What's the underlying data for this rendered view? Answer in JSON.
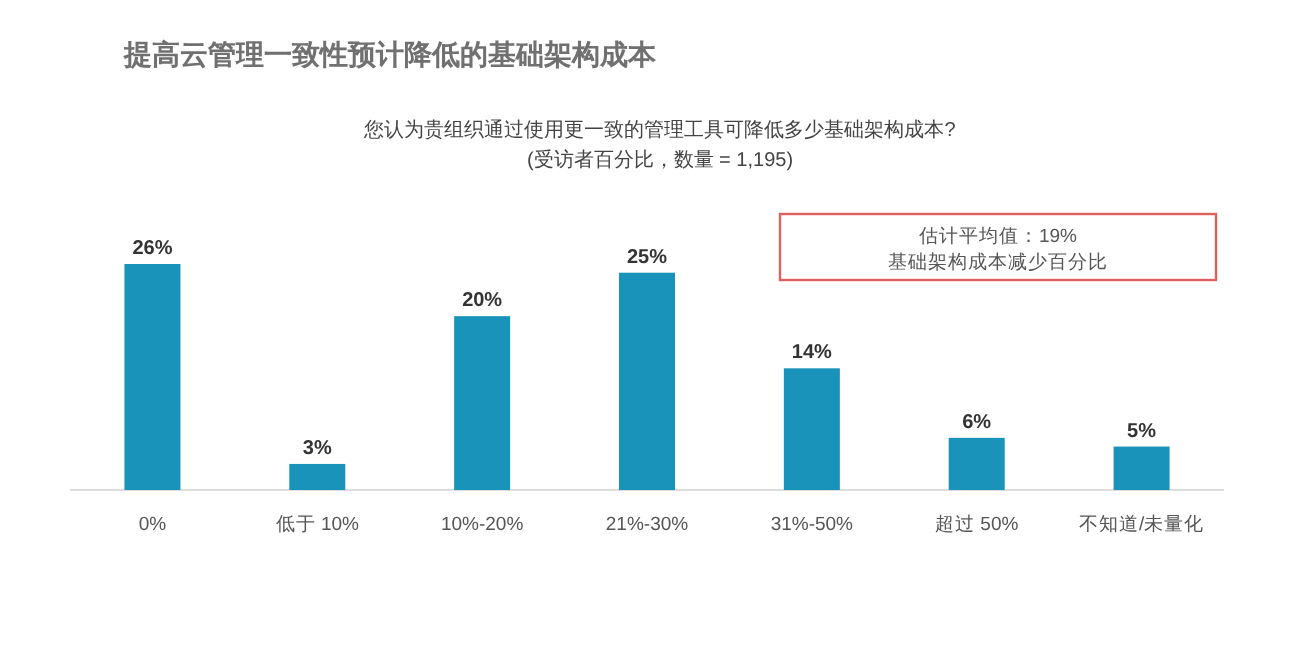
{
  "chart_data": {
    "type": "bar",
    "title": "提高云管理一致性预计降低的基础架构成本",
    "subtitle": "您认为贵组织通过使用更一致的管理工具可降低多少基础架构成本?\n(受访者百分比，数量 = 1,195)",
    "categories": [
      "0%",
      "低于 10%",
      "10%-20%",
      "21%-30%",
      "31%-50%",
      "超过 50%",
      "不知道/未量化"
    ],
    "values": [
      26,
      3,
      20,
      25,
      14,
      6,
      5
    ],
    "color": "#1a93bb",
    "value_labels": [
      "26%",
      "3%",
      "20%",
      "25%",
      "14%",
      "6%",
      "5%"
    ],
    "annotations": [
      "估计平均值：19%",
      "基础架构成本减少百分比"
    ]
  }
}
